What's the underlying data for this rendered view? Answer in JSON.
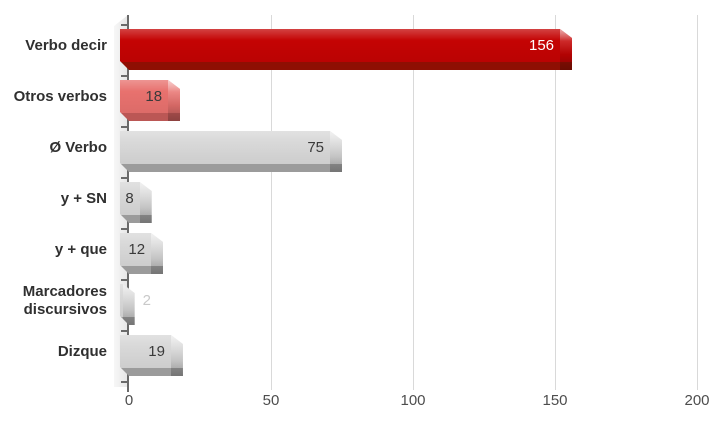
{
  "chart_data": {
    "type": "bar",
    "orientation": "horizontal",
    "title": "",
    "categories": [
      "Verbo decir",
      "Otros verbos",
      "Ø Verbo",
      "y + SN",
      "y + que",
      "Marcadores discursivos",
      "Dizque"
    ],
    "values": [
      156,
      18,
      75,
      8,
      12,
      2,
      19
    ],
    "xlabel": "",
    "ylabel": "",
    "xlim": [
      0,
      200
    ],
    "x_ticks": [
      0,
      50,
      100,
      150,
      200
    ],
    "grid": true,
    "legend": false,
    "bars": [
      {
        "slug": "verbo-decir",
        "category": "Verbo decir",
        "value": 156,
        "face_color": "#c40303",
        "shadow_color": "#8e0f03",
        "value_label_color": "#ffffff",
        "value_label_position": "inside"
      },
      {
        "slug": "otros-verbos",
        "category": "Otros verbos",
        "value": 18,
        "face_color": "#e8716e",
        "shadow_color": "#bb5755",
        "value_label_color": "#3a3a3a",
        "value_label_position": "inside"
      },
      {
        "slug": "verbo-cero",
        "category": "Ø Verbo",
        "value": 75,
        "face_color": "#d8d8d8",
        "shadow_color": "#9b9b9b",
        "value_label_color": "#3a3a3a",
        "value_label_position": "inside"
      },
      {
        "slug": "y-sn",
        "category": "y + SN",
        "value": 8,
        "face_color": "#d8d8d8",
        "shadow_color": "#9b9b9b",
        "value_label_color": "#3a3a3a",
        "value_label_position": "inside"
      },
      {
        "slug": "y-que",
        "category": "y + que",
        "value": 12,
        "face_color": "#d8d8d8",
        "shadow_color": "#9b9b9b",
        "value_label_color": "#3a3a3a",
        "value_label_position": "inside"
      },
      {
        "slug": "marcadores-discursivos",
        "category": "Marcadores discursivos",
        "value": 2,
        "face_color": "#d8d8d8",
        "shadow_color": "#9b9b9b",
        "value_label_color": "#c9c9c9",
        "value_label_position": "outside"
      },
      {
        "slug": "dizque",
        "category": "Dizque",
        "value": 19,
        "face_color": "#d8d8d8",
        "shadow_color": "#9b9b9b",
        "value_label_color": "#3a3a3a",
        "value_label_position": "inside"
      }
    ],
    "colors": {
      "background": "#ffffff",
      "axis_line": "#6a6a6a",
      "gridline": "#d9d9d9",
      "tick_label": "#4d4d4d",
      "category_label": "#303030"
    }
  }
}
